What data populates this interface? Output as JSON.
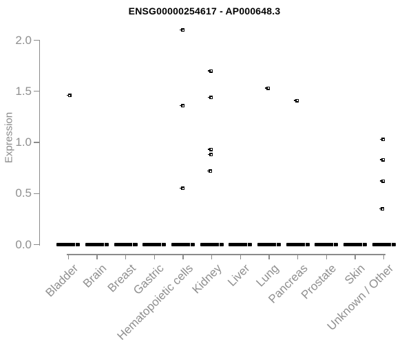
{
  "chart_data": {
    "type": "scatter",
    "title": "ENSG00000254617 - AP000648.3",
    "ylabel": "Expression",
    "xlabel": "",
    "ylim": [
      0.0,
      2.1
    ],
    "yticks": [
      0.0,
      0.5,
      1.0,
      1.5,
      2.0
    ],
    "grid": false,
    "legend": false,
    "marker": "small open black square",
    "categories": [
      "Bladder",
      "Brain",
      "Breast",
      "Gastric",
      "Hematopoietic cells",
      "Kidney",
      "Liver",
      "Lung",
      "Pancreas",
      "Prostate",
      "Skin",
      "Unknown / Other"
    ],
    "points": [
      {
        "category": "Bladder",
        "value": 1.46,
        "dx": 2
      },
      {
        "category": "Hematopoietic cells",
        "value": 2.1,
        "dx": 0
      },
      {
        "category": "Hematopoietic cells",
        "value": 1.36,
        "dx": 0
      },
      {
        "category": "Hematopoietic cells",
        "value": 0.55,
        "dx": 0
      },
      {
        "category": "Kidney",
        "value": 1.7,
        "dx": -1
      },
      {
        "category": "Kidney",
        "value": 1.44,
        "dx": -1
      },
      {
        "category": "Kidney",
        "value": 0.93,
        "dx": -1
      },
      {
        "category": "Kidney",
        "value": 0.88,
        "dx": -1
      },
      {
        "category": "Kidney",
        "value": 0.72,
        "dx": -2
      },
      {
        "category": "Lung",
        "value": 1.53,
        "dx": -1
      },
      {
        "category": "Pancreas",
        "value": 1.41,
        "dx": -1
      },
      {
        "category": "Unknown / Other",
        "value": 1.03,
        "dx": -1
      },
      {
        "category": "Unknown / Other",
        "value": 0.83,
        "dx": -1
      },
      {
        "category": "Unknown / Other",
        "value": 0.62,
        "dx": -1
      },
      {
        "category": "Unknown / Other",
        "value": 0.35,
        "dx": -2
      }
    ],
    "zero_bars": {
      "value": 0.0,
      "all_categories": true
    },
    "colors": {
      "point": "#000000",
      "axis_text": "#8f8f8f",
      "axis_line": "#8a8a8a",
      "title": "#000000",
      "background": "#ffffff"
    }
  }
}
